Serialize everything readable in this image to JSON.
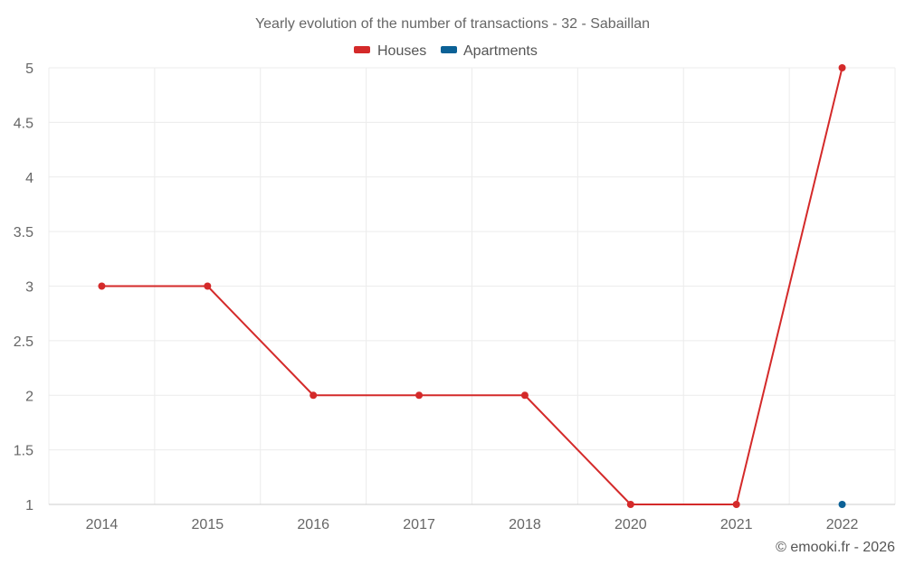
{
  "chart_data": {
    "type": "line",
    "title": "Yearly evolution of the number of transactions - 32 - Sabaillan",
    "categories": [
      "2014",
      "2015",
      "2016",
      "2017",
      "2018",
      "2020",
      "2021",
      "2022"
    ],
    "series": [
      {
        "name": "Houses",
        "color": "#d42a2a",
        "values": [
          3,
          3,
          2,
          2,
          2,
          1,
          1,
          5
        ]
      },
      {
        "name": "Apartments",
        "color": "#0b6196",
        "values": [
          null,
          null,
          null,
          null,
          null,
          null,
          null,
          1
        ]
      }
    ],
    "yticks": [
      "1",
      "1.5",
      "2",
      "2.5",
      "3",
      "3.5",
      "4",
      "4.5",
      "5"
    ],
    "ylim": [
      1,
      5
    ],
    "grid": true,
    "legend": "top-center"
  },
  "credit": "© emooki.fr - 2026"
}
